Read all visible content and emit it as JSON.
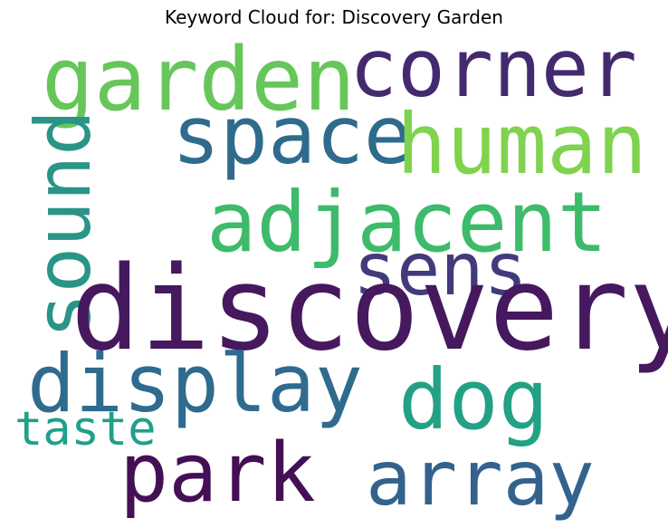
{
  "title": "Keyword Cloud for: Discovery Garden",
  "words": {
    "discovery": {
      "text": "discovery",
      "color": "#46185e"
    },
    "garden": {
      "text": "garden",
      "color": "#67c65a"
    },
    "corner": {
      "text": "corner",
      "color": "#432a6f"
    },
    "space": {
      "text": "space",
      "color": "#2f6b8c"
    },
    "human": {
      "text": "human",
      "color": "#7fd34e"
    },
    "sound": {
      "text": "sound",
      "color": "#2a9487"
    },
    "adjacent": {
      "text": "adjacent",
      "color": "#3dbb6b"
    },
    "sens": {
      "text": "sens",
      "color": "#433a7b"
    },
    "display": {
      "text": "display",
      "color": "#2e6b8e"
    },
    "dog": {
      "text": "dog",
      "color": "#22a185"
    },
    "taste": {
      "text": "taste",
      "color": "#1fa08a"
    },
    "park": {
      "text": "park",
      "color": "#440f55"
    },
    "array": {
      "text": "array",
      "color": "#33638d"
    }
  }
}
